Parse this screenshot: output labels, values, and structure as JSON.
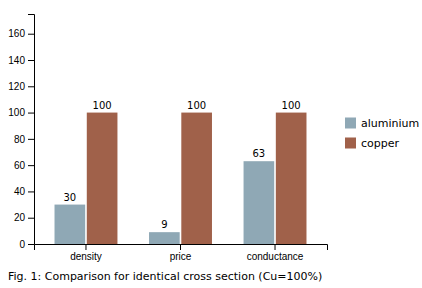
{
  "chart_data": {
    "type": "bar",
    "categories": [
      "density",
      "price",
      "conductance"
    ],
    "series": [
      {
        "name": "aluminium",
        "color": "#8fa8b5",
        "values": [
          30,
          9,
          63
        ]
      },
      {
        "name": "copper",
        "color": "#a0614a",
        "values": [
          100,
          100,
          100
        ]
      }
    ],
    "ylim": [
      0,
      175
    ],
    "yticks": [
      0,
      20,
      40,
      60,
      80,
      100,
      120,
      140,
      160
    ],
    "data_labels": true,
    "legend": "right",
    "grid": false,
    "caption": "Fig. 1: Comparison for identical cross section (Cu=100%)"
  }
}
